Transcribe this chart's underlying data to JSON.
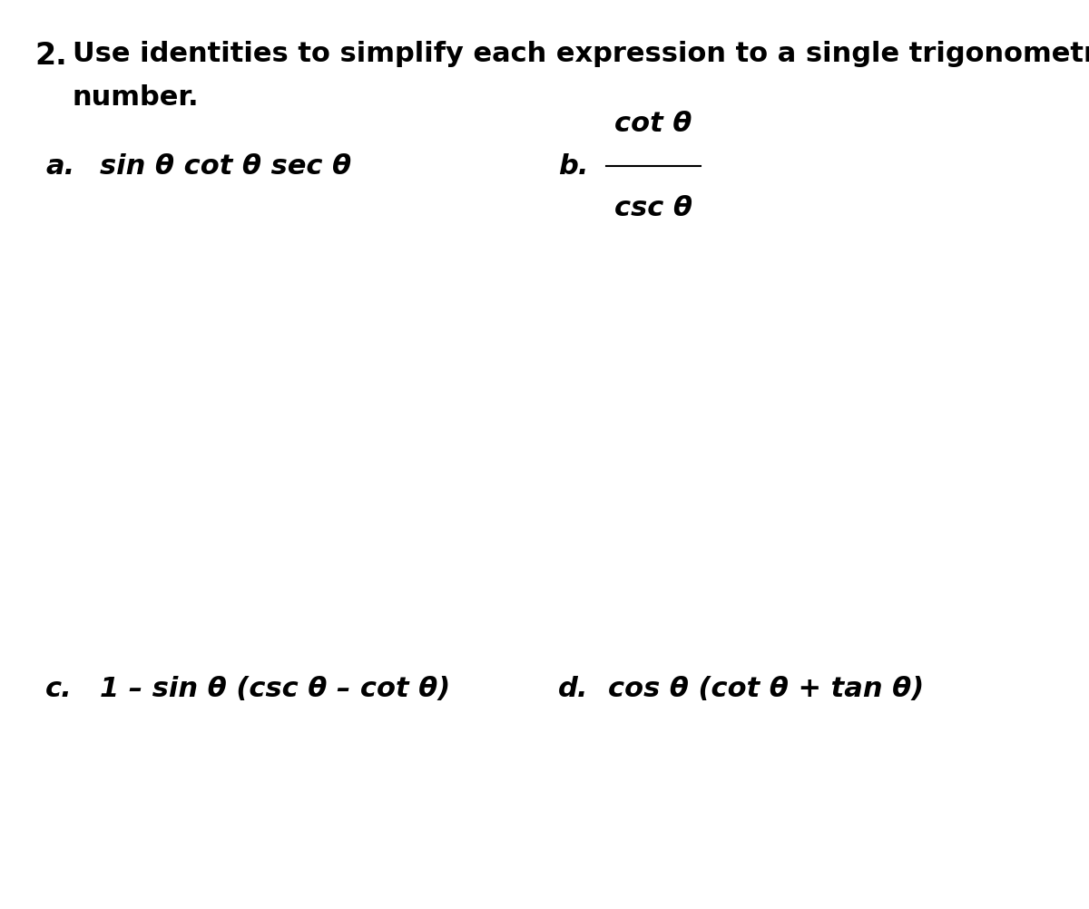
{
  "background_color": "#ffffff",
  "title_number": "2.",
  "title_text": "Use identities to simplify each expression to a single trigonometric",
  "title_text2": "number.",
  "label_a": "a.",
  "expr_a": "sin θ cot θ sec θ",
  "label_b": "b.",
  "expr_b_num": "cot θ",
  "expr_b_den": "csc θ",
  "label_c": "c.",
  "expr_c": "1 – sin θ (csc θ – cot θ)",
  "label_d": "d.",
  "expr_d": "cos θ (cot θ + tan θ)",
  "font_size_title": 20,
  "font_size_number": 22,
  "font_size_expr": 20,
  "font_size_label": 20
}
